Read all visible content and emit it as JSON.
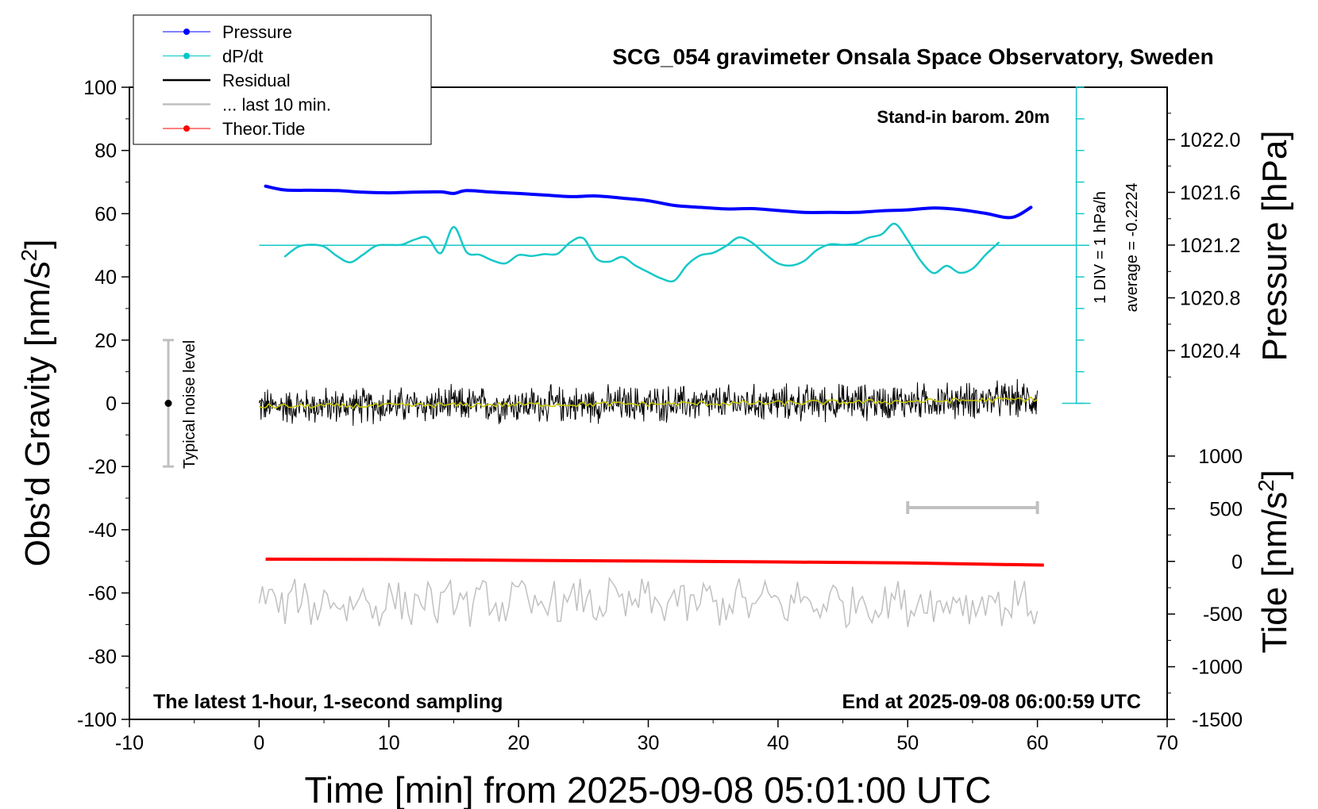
{
  "chart_data": {
    "type": "line",
    "title": "SCG_054 gravimeter Onsala Space Observatory, Sweden",
    "subtitle_top_right": "Stand-in barom. 20m",
    "footer_left": "The latest 1-hour, 1-second sampling",
    "footer_right": "End at 2025-09-08 06:00:59 UTC",
    "xlabel": "Time [min] from 2025-09-08 05:01:00 UTC",
    "ylabel_left_main": "Obs'd Gravity [nm/s",
    "ylabel_left_sup": "2",
    "ylabel_left_close": "]",
    "ylabel_right_pressure": "Pressure [hPa]",
    "ylabel_right_tide_main": "Tide [nm/s",
    "ylabel_right_tide_sup": "2",
    "ylabel_right_tide_close": "]",
    "xlim": [
      -10,
      70
    ],
    "ylim_gravity": [
      -100,
      100
    ],
    "ylim_pressure": [
      1020.0,
      1022.4
    ],
    "ylim_tide": [
      -1500,
      1000
    ],
    "x_ticks": [
      "-10",
      "0",
      "10",
      "20",
      "30",
      "40",
      "50",
      "60",
      "70"
    ],
    "gravity_ticks": [
      "100",
      "80",
      "60",
      "40",
      "20",
      "0",
      "-20",
      "-40",
      "-60",
      "-80",
      "-100"
    ],
    "pressure_ticks": [
      "1022.0",
      "1021.6",
      "1021.2",
      "1020.8",
      "1020.4"
    ],
    "tide_ticks": [
      "1000",
      "500",
      "0",
      "-500",
      "-1000",
      "-1500"
    ],
    "dpdt_scale_label": "1 DIV = 1 hPa/h",
    "dpdt_average_label": "average = -0.2224",
    "noise_label": "Typical noise level",
    "noise_bar": {
      "x": -7,
      "low": -20,
      "high": 20,
      "center": 0
    },
    "last10_bar": {
      "x_start": 50,
      "x_end": 60,
      "y": -33
    },
    "legend": [
      {
        "label": "Pressure",
        "color": "#0000ff",
        "marker": true
      },
      {
        "label": "dP/dt",
        "color": "#00c8c8",
        "marker": true
      },
      {
        "label": "Residual",
        "color": "#000000",
        "marker": false
      },
      {
        "label": "... last 10 min.",
        "color": "#c0c0c0",
        "marker": false
      },
      {
        "label": "Theor.Tide",
        "color": "#ff0000",
        "marker": true
      }
    ],
    "series": [
      {
        "name": "Pressure",
        "color": "#0000ff",
        "x": [
          0.5,
          2,
          4,
          6,
          8,
          10,
          12,
          14,
          15,
          16,
          18,
          20,
          22,
          24,
          26,
          28,
          30,
          32,
          34,
          36,
          38,
          40,
          42,
          44,
          46,
          48,
          50,
          52,
          54,
          56,
          58,
          59.5
        ],
        "y": [
          68.7,
          67.5,
          67.4,
          67.3,
          66.8,
          66.6,
          66.8,
          66.9,
          66.4,
          67.3,
          66.8,
          66.4,
          65.9,
          65.4,
          65.6,
          64.9,
          64.1,
          62.6,
          62.0,
          61.5,
          61.6,
          61.0,
          60.4,
          60.4,
          60.4,
          60.9,
          61.2,
          61.8,
          61.3,
          60.1,
          58.8,
          62.0
        ]
      },
      {
        "name": "dP/dt",
        "color": "#18c8c8",
        "x": [
          2,
          3,
          4,
          5,
          6,
          7,
          8,
          9,
          10,
          11,
          12,
          13,
          14,
          15,
          16,
          17,
          18,
          19,
          20,
          21,
          22,
          23,
          24,
          25,
          26,
          27,
          28,
          29,
          30,
          31,
          32,
          33,
          34,
          35,
          36,
          37,
          38,
          39,
          40,
          41,
          42,
          43,
          44,
          45,
          46,
          47,
          48,
          49,
          50,
          51,
          52,
          53,
          54,
          55,
          56,
          57
        ],
        "y": [
          46.5,
          49.5,
          50.2,
          49.6,
          46.6,
          44.6,
          47.0,
          49.8,
          50.1,
          50.2,
          51.8,
          52.4,
          47.5,
          55.8,
          47.8,
          47.0,
          45.2,
          44.3,
          46.9,
          46.6,
          47.2,
          47.3,
          51.0,
          52.2,
          45.8,
          44.8,
          46.3,
          43.6,
          41.5,
          39.5,
          38.8,
          43.8,
          46.8,
          47.6,
          49.8,
          52.5,
          50.8,
          47.3,
          44.3,
          43.6,
          45.0,
          48.5,
          50.3,
          50.1,
          50.5,
          52.4,
          53.5,
          56.8,
          51.6,
          45.1,
          41.2,
          43.5,
          41.3,
          42.6,
          47.0,
          50.8
        ]
      },
      {
        "name": "Residual",
        "color": "#000000",
        "x": [
          0,
          10,
          20,
          30,
          40,
          50,
          60
        ],
        "y": [
          -1.0,
          -0.7,
          -0.4,
          -0.2,
          0.1,
          0.6,
          1.3
        ],
        "noise_amplitude": 5
      },
      {
        "name": "Residual (smoothed)",
        "color": "#c8c800",
        "x": [
          0,
          10,
          20,
          30,
          40,
          50,
          60
        ],
        "y": [
          -1.0,
          -0.7,
          -0.4,
          -0.2,
          0.1,
          0.6,
          1.3
        ]
      },
      {
        "name": "Theor.Tide",
        "color": "#ff0000",
        "x": [
          0.5,
          10,
          20,
          30,
          40,
          50,
          60.5
        ],
        "y": [
          -49.3,
          -49.4,
          -49.7,
          -49.9,
          -50.2,
          -50.5,
          -51.2
        ]
      },
      {
        "name": "... last 10 min.",
        "color": "#c0c0c0",
        "x": [
          0,
          60
        ],
        "y": [
          -63,
          -63
        ],
        "noise_amplitude": 6
      }
    ],
    "gravity_reference_line": 50
  }
}
